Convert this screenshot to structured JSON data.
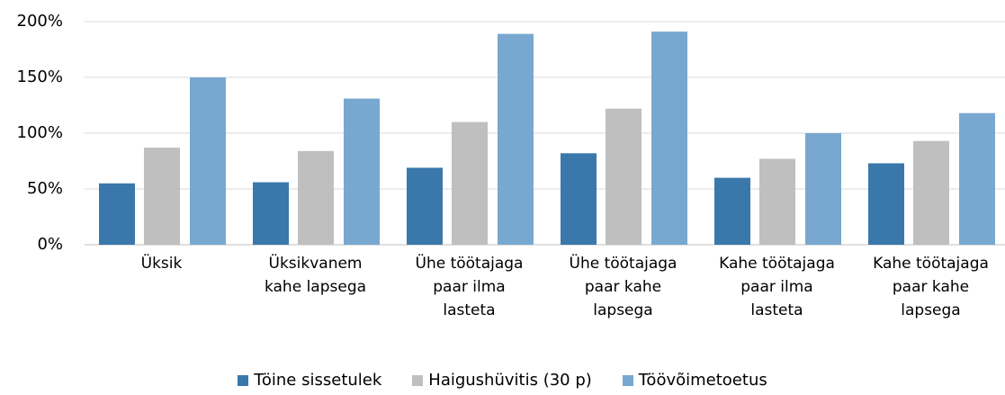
{
  "chart_data": {
    "type": "bar",
    "categories": [
      "Üksik",
      "Üksikvanem\nkahe lapsega",
      "Ühe töötajaga\npaar ilma\nlasteta",
      "Ühe töötajaga\npaar kahe\nlapsega",
      "Kahe töötajaga\npaar ilma\nlasteta",
      "Kahe töötajaga\npaar kahe\nlapsega"
    ],
    "series": [
      {
        "name": "Töine sissetulek",
        "color": "#3a78ab",
        "values": [
          55,
          56,
          69,
          82,
          60,
          73
        ]
      },
      {
        "name": "Haigushüvitis (30 p)",
        "color": "#bfbfbf",
        "values": [
          87,
          84,
          110,
          122,
          77,
          93
        ]
      },
      {
        "name": "Töövõimetoetus",
        "color": "#78a8d0",
        "values": [
          150,
          131,
          189,
          191,
          100,
          118
        ]
      }
    ],
    "ylim": [
      0,
      200
    ],
    "yticks": [
      {
        "value": 0,
        "label": "0%"
      },
      {
        "value": 50,
        "label": "50%"
      },
      {
        "value": 100,
        "label": "100%"
      },
      {
        "value": 150,
        "label": "150%"
      },
      {
        "value": 200,
        "label": "200%"
      }
    ],
    "grid": true,
    "legend": "bottom"
  }
}
